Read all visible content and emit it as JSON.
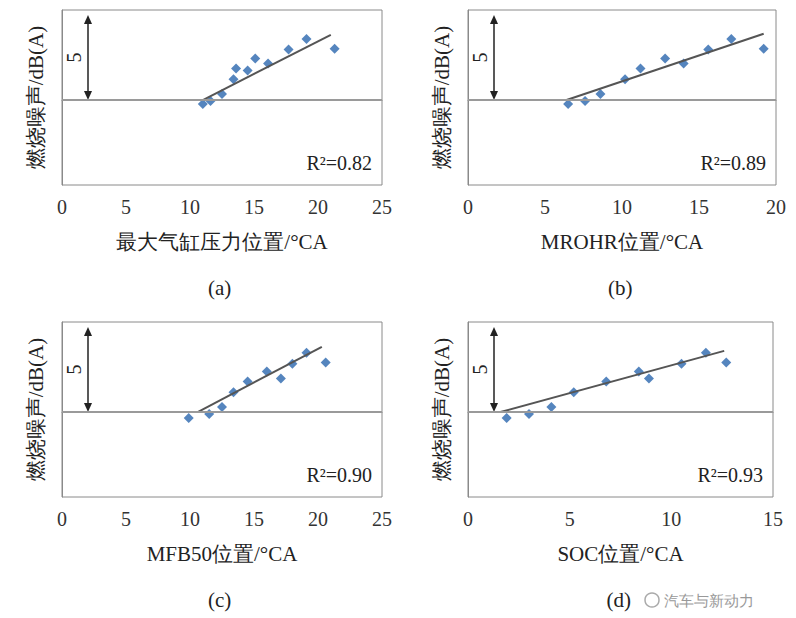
{
  "chart_data": [
    {
      "type": "scatter",
      "title": "(a)",
      "x_label": "最大气缸压力位置/°CA",
      "y_label": "燃烧噪声/dB(A)",
      "xlim": [
        0,
        25
      ],
      "xticks": [
        0,
        5,
        10,
        15,
        20,
        25
      ],
      "ylim": [
        -5,
        5.3
      ],
      "tick_labels": "x",
      "grid": false,
      "reference_line": {
        "y": 0,
        "color": "#9a9a9a"
      },
      "scale_arrow": {
        "y": [
          0,
          5
        ],
        "label": "5"
      },
      "annotations": [
        {
          "text": "R²=0.82"
        }
      ],
      "series": [
        {
          "type": "scatter",
          "marker": "diamond",
          "color": "#2a66ae",
          "x": [
            11.0,
            11.6,
            12.5,
            13.4,
            13.6,
            14.5,
            15.1,
            16.1,
            17.7,
            19.1,
            21.3
          ],
          "values": [
            -0.23,
            -0.06,
            0.35,
            1.22,
            1.86,
            1.74,
            2.44,
            2.15,
            2.97,
            3.6,
            3.02
          ]
        },
        {
          "type": "line",
          "color": "#555555",
          "x": [
            11.0,
            21.0
          ],
          "values": [
            0,
            3.84
          ]
        }
      ]
    },
    {
      "type": "scatter",
      "title": "(b)",
      "x_label": "MROHR位置/°CA",
      "y_label": "燃烧噪声/dB(A)",
      "xlim": [
        0,
        20
      ],
      "xticks": [
        0,
        5,
        10,
        15,
        20
      ],
      "ylim": [
        -5,
        5.3
      ],
      "tick_labels": "x",
      "grid": false,
      "reference_line": {
        "y": 0,
        "color": "#9a9a9a"
      },
      "scale_arrow": {
        "y": [
          0,
          5
        ],
        "label": "5"
      },
      "annotations": [
        {
          "text": "R²=0.89"
        }
      ],
      "series": [
        {
          "type": "scatter",
          "marker": "diamond",
          "color": "#2a66ae",
          "x": [
            6.5,
            7.6,
            8.6,
            10.2,
            11.2,
            12.8,
            14.0,
            15.6,
            17.1,
            19.2
          ],
          "values": [
            -0.23,
            -0.06,
            0.35,
            1.22,
            1.86,
            2.44,
            2.15,
            2.97,
            3.6,
            3.02
          ]
        },
        {
          "type": "line",
          "color": "#555555",
          "x": [
            6.4,
            19.2
          ],
          "values": [
            0,
            3.9
          ]
        }
      ]
    },
    {
      "type": "scatter",
      "title": "(c)",
      "x_label": "MFB50位置/°CA",
      "y_label": "燃烧噪声/dB(A)",
      "xlim": [
        0,
        25
      ],
      "xticks": [
        0,
        5,
        10,
        15,
        20,
        25
      ],
      "ylim": [
        -5,
        5.3
      ],
      "tick_labels": "x",
      "grid": false,
      "reference_line": {
        "y": 0,
        "color": "#9a9a9a"
      },
      "scale_arrow": {
        "y": [
          0,
          5
        ],
        "label": "5"
      },
      "annotations": [
        {
          "text": "R²=0.90"
        }
      ],
      "series": [
        {
          "type": "scatter",
          "marker": "diamond",
          "color": "#2a66ae",
          "x": [
            9.9,
            11.5,
            12.5,
            13.4,
            14.5,
            16.0,
            17.1,
            18.0,
            19.1,
            20.6
          ],
          "values": [
            -0.35,
            -0.12,
            0.29,
            1.16,
            1.8,
            2.38,
            1.98,
            2.85,
            3.49,
            2.91
          ]
        },
        {
          "type": "line",
          "color": "#555555",
          "x": [
            10.6,
            20.3
          ],
          "values": [
            0,
            3.84
          ]
        }
      ]
    },
    {
      "type": "scatter",
      "title": "(d)",
      "x_label": "SOC位置/°CA",
      "y_label": "燃烧噪声/dB(A)",
      "xlim": [
        0,
        15
      ],
      "xticks": [
        0,
        5,
        10,
        15
      ],
      "ylim": [
        -5,
        5.3
      ],
      "tick_labels": "x",
      "grid": false,
      "reference_line": {
        "y": 0,
        "color": "#9a9a9a"
      },
      "scale_arrow": {
        "y": [
          0,
          5
        ],
        "label": "5"
      },
      "annotations": [
        {
          "text": "R²=0.93"
        }
      ],
      "series": [
        {
          "type": "scatter",
          "marker": "diamond",
          "color": "#2a66ae",
          "x": [
            1.9,
            3.0,
            4.1,
            5.2,
            6.8,
            8.4,
            8.9,
            10.5,
            11.7,
            12.7
          ],
          "values": [
            -0.35,
            -0.12,
            0.29,
            1.16,
            1.8,
            2.38,
            1.98,
            2.85,
            3.49,
            2.91
          ]
        },
        {
          "type": "line",
          "color": "#555555",
          "x": [
            1.6,
            12.6
          ],
          "values": [
            0,
            3.6
          ]
        }
      ]
    }
  ],
  "watermark": "汽车与新动力"
}
